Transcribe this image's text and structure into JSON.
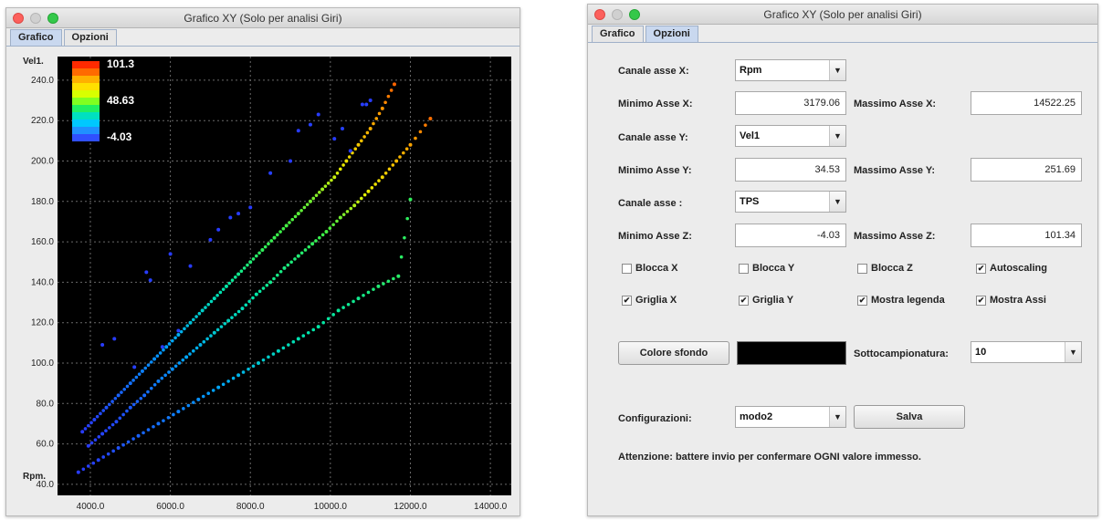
{
  "chart_window": {
    "title": "Grafico XY (Solo per analisi Giri)",
    "tabs": [
      "Grafico",
      "Opzioni"
    ],
    "active_tab": "Grafico"
  },
  "options_window": {
    "title": "Grafico XY (Solo per analisi Giri)",
    "tabs": [
      "Grafico",
      "Opzioni"
    ],
    "active_tab": "Opzioni",
    "canale_x": {
      "label": "Canale asse X:",
      "value": "Rpm"
    },
    "min_x": {
      "label": "Minimo Asse X:",
      "value": "3179.06"
    },
    "max_x": {
      "label": "Massimo Asse X:",
      "value": "14522.25"
    },
    "canale_y": {
      "label": "Canale asse Y:",
      "value": "Vel1"
    },
    "min_y": {
      "label": "Minimo Asse Y:",
      "value": "34.53"
    },
    "max_y": {
      "label": "Massimo Asse Y:",
      "value": "251.69"
    },
    "canale_z": {
      "label": "Canale asse :",
      "value": "TPS"
    },
    "min_z": {
      "label": "Minimo Asse Z:",
      "value": "-4.03"
    },
    "max_z": {
      "label": "Massimo Asse Z:",
      "value": "101.34"
    },
    "checkboxes": [
      {
        "label": "Blocca X",
        "checked": false
      },
      {
        "label": "Blocca Y",
        "checked": false
      },
      {
        "label": "Blocca Z",
        "checked": false
      },
      {
        "label": "Autoscaling",
        "checked": true
      },
      {
        "label": "Griglia X",
        "checked": true
      },
      {
        "label": "Griglia Y",
        "checked": true
      },
      {
        "label": "Mostra legenda",
        "checked": true
      },
      {
        "label": "Mostra Assi",
        "checked": true
      }
    ],
    "colore_sfondo_button": "Colore sfondo",
    "background_color": "#000000",
    "sottocampionatura": {
      "label": "Sottocampionatura:",
      "value": "10"
    },
    "configurazioni": {
      "label": "Configurazioni:",
      "value": "modo2"
    },
    "salva_button": "Salva",
    "notice": "Attenzione: battere invio per confermare OGNI valore immesso."
  },
  "chart_data": {
    "type": "scatter",
    "xlabel": "Rpm.",
    "ylabel": "Vel1.",
    "xlim": [
      3179.06,
      14522.25
    ],
    "ylim": [
      34.53,
      251.69
    ],
    "x_ticks": [
      4000,
      6000,
      8000,
      10000,
      12000,
      14000
    ],
    "x_tick_labels": [
      "4000.0",
      "6000.0",
      "8000.0",
      "10000.0",
      "12000.0",
      "14000.0"
    ],
    "y_ticks": [
      40,
      60,
      80,
      100,
      120,
      140,
      160,
      180,
      200,
      220,
      240
    ],
    "y_tick_labels": [
      "40.0",
      "60.0",
      "80.0",
      "100.0",
      "120.0",
      "140.0",
      "160.0",
      "180.0",
      "200.0",
      "220.0",
      "240.0"
    ],
    "grid": true,
    "background": "#000000",
    "legend": {
      "placement": "top-left",
      "labels": [
        "101.3",
        "48.63",
        "-4.03"
      ],
      "colors": [
        "#ff2a00",
        "#ff6a00",
        "#ffb000",
        "#ffe000",
        "#d8ff00",
        "#80ff20",
        "#20f060",
        "#00e0c0",
        "#00c8ff",
        "#2090ff",
        "#3050ff"
      ]
    },
    "series": [
      {
        "x": [
          3800,
          4100,
          4400,
          4700,
          5000,
          5300,
          5600,
          5900,
          6200,
          6500,
          6800,
          7100,
          7400,
          7700,
          8000,
          8300,
          8600,
          8900,
          9200,
          9500,
          9800,
          10100,
          10400,
          10700,
          11000,
          11300,
          11600
        ],
        "y": [
          66,
          72,
          78,
          84,
          90,
          96,
          102,
          108,
          114,
          120,
          126,
          132,
          138,
          144,
          150,
          156,
          162,
          168,
          174,
          180,
          186,
          192,
          200,
          208,
          216,
          226,
          238
        ],
        "z": [
          -4,
          -2,
          2,
          6,
          10,
          14,
          18,
          22,
          26,
          32,
          36,
          40,
          44,
          48,
          52,
          56,
          58,
          60,
          62,
          64,
          68,
          72,
          78,
          82,
          86,
          90,
          95
        ]
      },
      {
        "x": [
          3950,
          4300,
          4650,
          5000,
          5350,
          5700,
          6050,
          6400,
          6750,
          7100,
          7450,
          7800,
          8150,
          8500,
          8850,
          9200,
          9550,
          9900,
          10250,
          10600,
          10950,
          11300,
          11650,
          12000,
          12500
        ],
        "y": [
          59,
          65,
          71,
          78,
          84,
          91,
          97,
          103,
          109,
          115,
          121,
          127,
          134,
          140,
          147,
          153,
          159,
          165,
          172,
          178,
          185,
          192,
          200,
          208,
          221
        ],
        "z": [
          -4,
          -2,
          0,
          4,
          8,
          14,
          18,
          24,
          28,
          34,
          38,
          40,
          44,
          48,
          50,
          52,
          56,
          60,
          64,
          70,
          76,
          80,
          84,
          88,
          94
        ]
      },
      {
        "x": [
          3700,
          4200,
          4700,
          5200,
          5700,
          6200,
          6700,
          7200,
          7700,
          8200,
          8700,
          9200,
          9700,
          10200,
          10700,
          11200,
          11700,
          12000
        ],
        "y": [
          46,
          52,
          58,
          64,
          70,
          76,
          82,
          88,
          94,
          100,
          106,
          112,
          118,
          126,
          132,
          138,
          143,
          181
        ],
        "z": [
          -4,
          -2,
          2,
          6,
          10,
          14,
          18,
          24,
          28,
          34,
          38,
          42,
          44,
          46,
          48,
          52,
          54,
          56
        ]
      },
      {
        "x": [
          4300,
          4600,
          5100,
          5400,
          5500,
          5800,
          6000,
          6200,
          6500,
          7000,
          7200,
          7500,
          7700,
          8000,
          8500,
          9000,
          9200,
          9500,
          9700,
          10100,
          10300,
          10500,
          10800,
          10900,
          11000
        ],
        "y": [
          109,
          112,
          98,
          145,
          141,
          108,
          154,
          116,
          148,
          161,
          166,
          172,
          174,
          177,
          194,
          200,
          215,
          218,
          223,
          211,
          216,
          205,
          228,
          228,
          230
        ],
        "z": [
          -4,
          -4,
          -3,
          -4,
          -3,
          -4,
          -4,
          -3,
          -4,
          -4,
          -4,
          -3,
          -4,
          -4,
          -3,
          -4,
          -4,
          -3,
          -4,
          -4,
          -3,
          -4,
          -4,
          -3,
          -4
        ]
      }
    ]
  }
}
